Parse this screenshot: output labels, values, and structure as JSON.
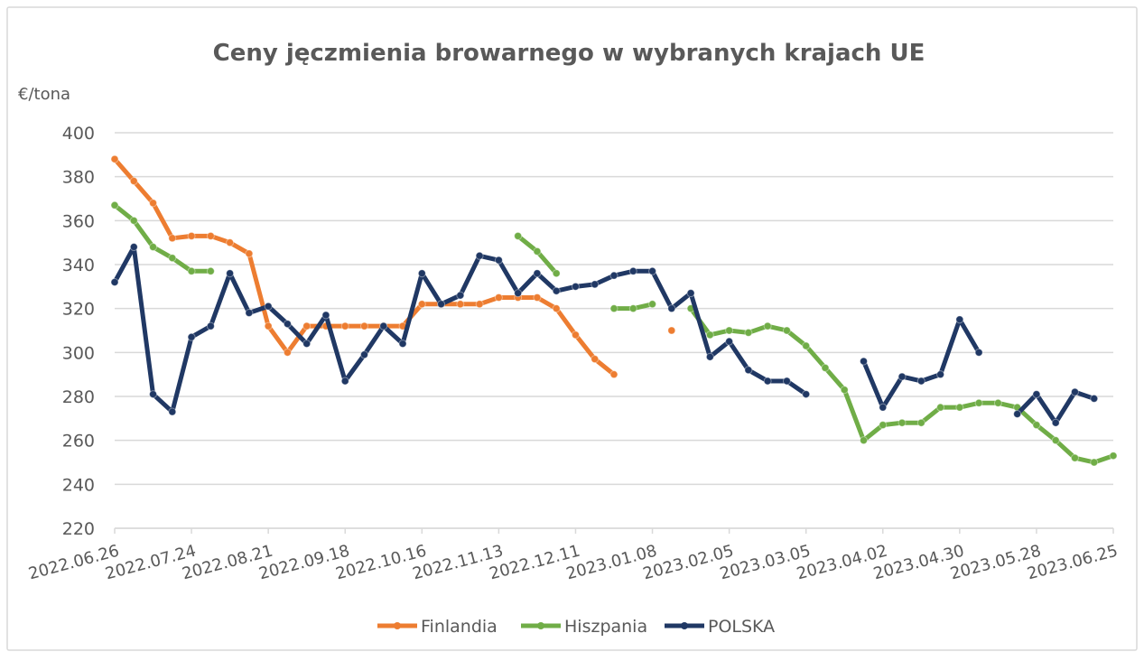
{
  "chart_data": {
    "type": "line",
    "title": "Ceny jęczmienia browarnego w wybranych krajach  UE",
    "y_label": "€/tona",
    "categories": [
      "2022.06.26",
      null,
      null,
      null,
      "2022.07.24",
      null,
      null,
      null,
      "2022.08.21",
      null,
      null,
      null,
      "2022.09.18",
      null,
      null,
      null,
      "2022.10.16",
      null,
      null,
      null,
      "2022.11.13",
      null,
      null,
      null,
      "2022.12.11",
      null,
      null,
      null,
      "2023.01.08",
      null,
      null,
      null,
      "2023.02.05",
      null,
      null,
      null,
      "2023.03.05",
      null,
      null,
      null,
      "2023.04.02",
      null,
      null,
      null,
      "2023.04.30",
      null,
      null,
      null,
      "2023.05.28",
      null,
      null,
      null,
      "2023.06.25"
    ],
    "ylim": [
      220,
      400
    ],
    "yticks": [
      220,
      240,
      260,
      280,
      300,
      320,
      340,
      360,
      380,
      400
    ],
    "grid": true,
    "legend": "bottom",
    "series": [
      {
        "name": "Finlandia",
        "color": "#ed7d31",
        "values": [
          388,
          378,
          368,
          352,
          353,
          353,
          350,
          345,
          312,
          300,
          312,
          312,
          312,
          312,
          312,
          312,
          322,
          322,
          322,
          322,
          325,
          325,
          325,
          320,
          308,
          297,
          290,
          null,
          null,
          310,
          null,
          null,
          null,
          null,
          null,
          null,
          null,
          null,
          null,
          null,
          null,
          null,
          null,
          null,
          null,
          null,
          null,
          null,
          null,
          null,
          null,
          null,
          null
        ]
      },
      {
        "name": "Hiszpania",
        "color": "#70ad47",
        "values": [
          367,
          360,
          348,
          343,
          337,
          337,
          null,
          null,
          null,
          null,
          null,
          null,
          null,
          null,
          null,
          null,
          null,
          null,
          null,
          null,
          null,
          353,
          346,
          336,
          null,
          null,
          320,
          320,
          322,
          null,
          320,
          308,
          310,
          309,
          312,
          310,
          303,
          293,
          283,
          260,
          267,
          268,
          268,
          275,
          275,
          277,
          277,
          275,
          267,
          260,
          252,
          250,
          253
        ]
      },
      {
        "name": "POLSKA",
        "color": "#203864",
        "values": [
          332,
          348,
          281,
          273,
          307,
          312,
          336,
          318,
          321,
          313,
          304,
          317,
          287,
          299,
          312,
          304,
          336,
          322,
          326,
          344,
          342,
          327,
          336,
          328,
          330,
          331,
          335,
          337,
          337,
          320,
          327,
          298,
          305,
          292,
          287,
          287,
          281,
          null,
          null,
          296,
          275,
          289,
          287,
          290,
          315,
          300,
          null,
          272,
          281,
          268,
          282,
          279,
          null
        ]
      }
    ]
  }
}
